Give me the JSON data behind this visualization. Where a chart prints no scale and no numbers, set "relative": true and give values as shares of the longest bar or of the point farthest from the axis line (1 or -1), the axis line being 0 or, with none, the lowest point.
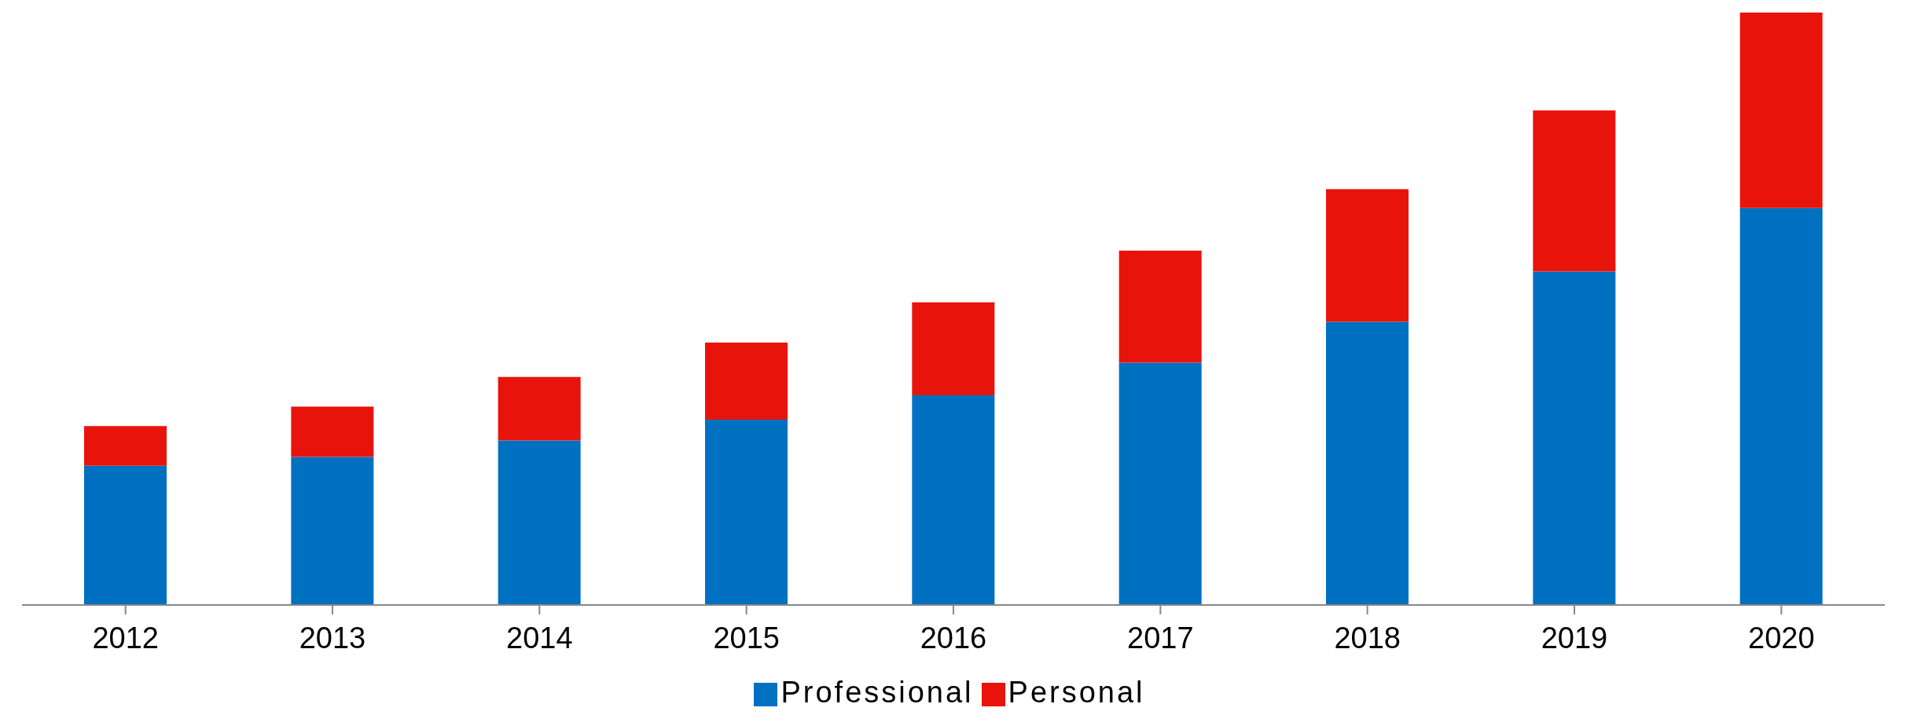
{
  "chart_data": {
    "type": "bar",
    "stacked": true,
    "relative": true,
    "legend": "bottom",
    "grid": false,
    "categories": [
      "2012",
      "2013",
      "2014",
      "2015",
      "2016",
      "2017",
      "2018",
      "2019",
      "2020"
    ],
    "series": [
      {
        "name": "Professional",
        "color": "#0070c0",
        "values": [
          0.235,
          0.25,
          0.278,
          0.313,
          0.354,
          0.409,
          0.478,
          0.563,
          0.67
        ]
      },
      {
        "name": "Personal",
        "color": "#e8140c",
        "values": [
          0.067,
          0.085,
          0.107,
          0.13,
          0.157,
          0.189,
          0.224,
          0.272,
          0.33
        ]
      }
    ]
  }
}
